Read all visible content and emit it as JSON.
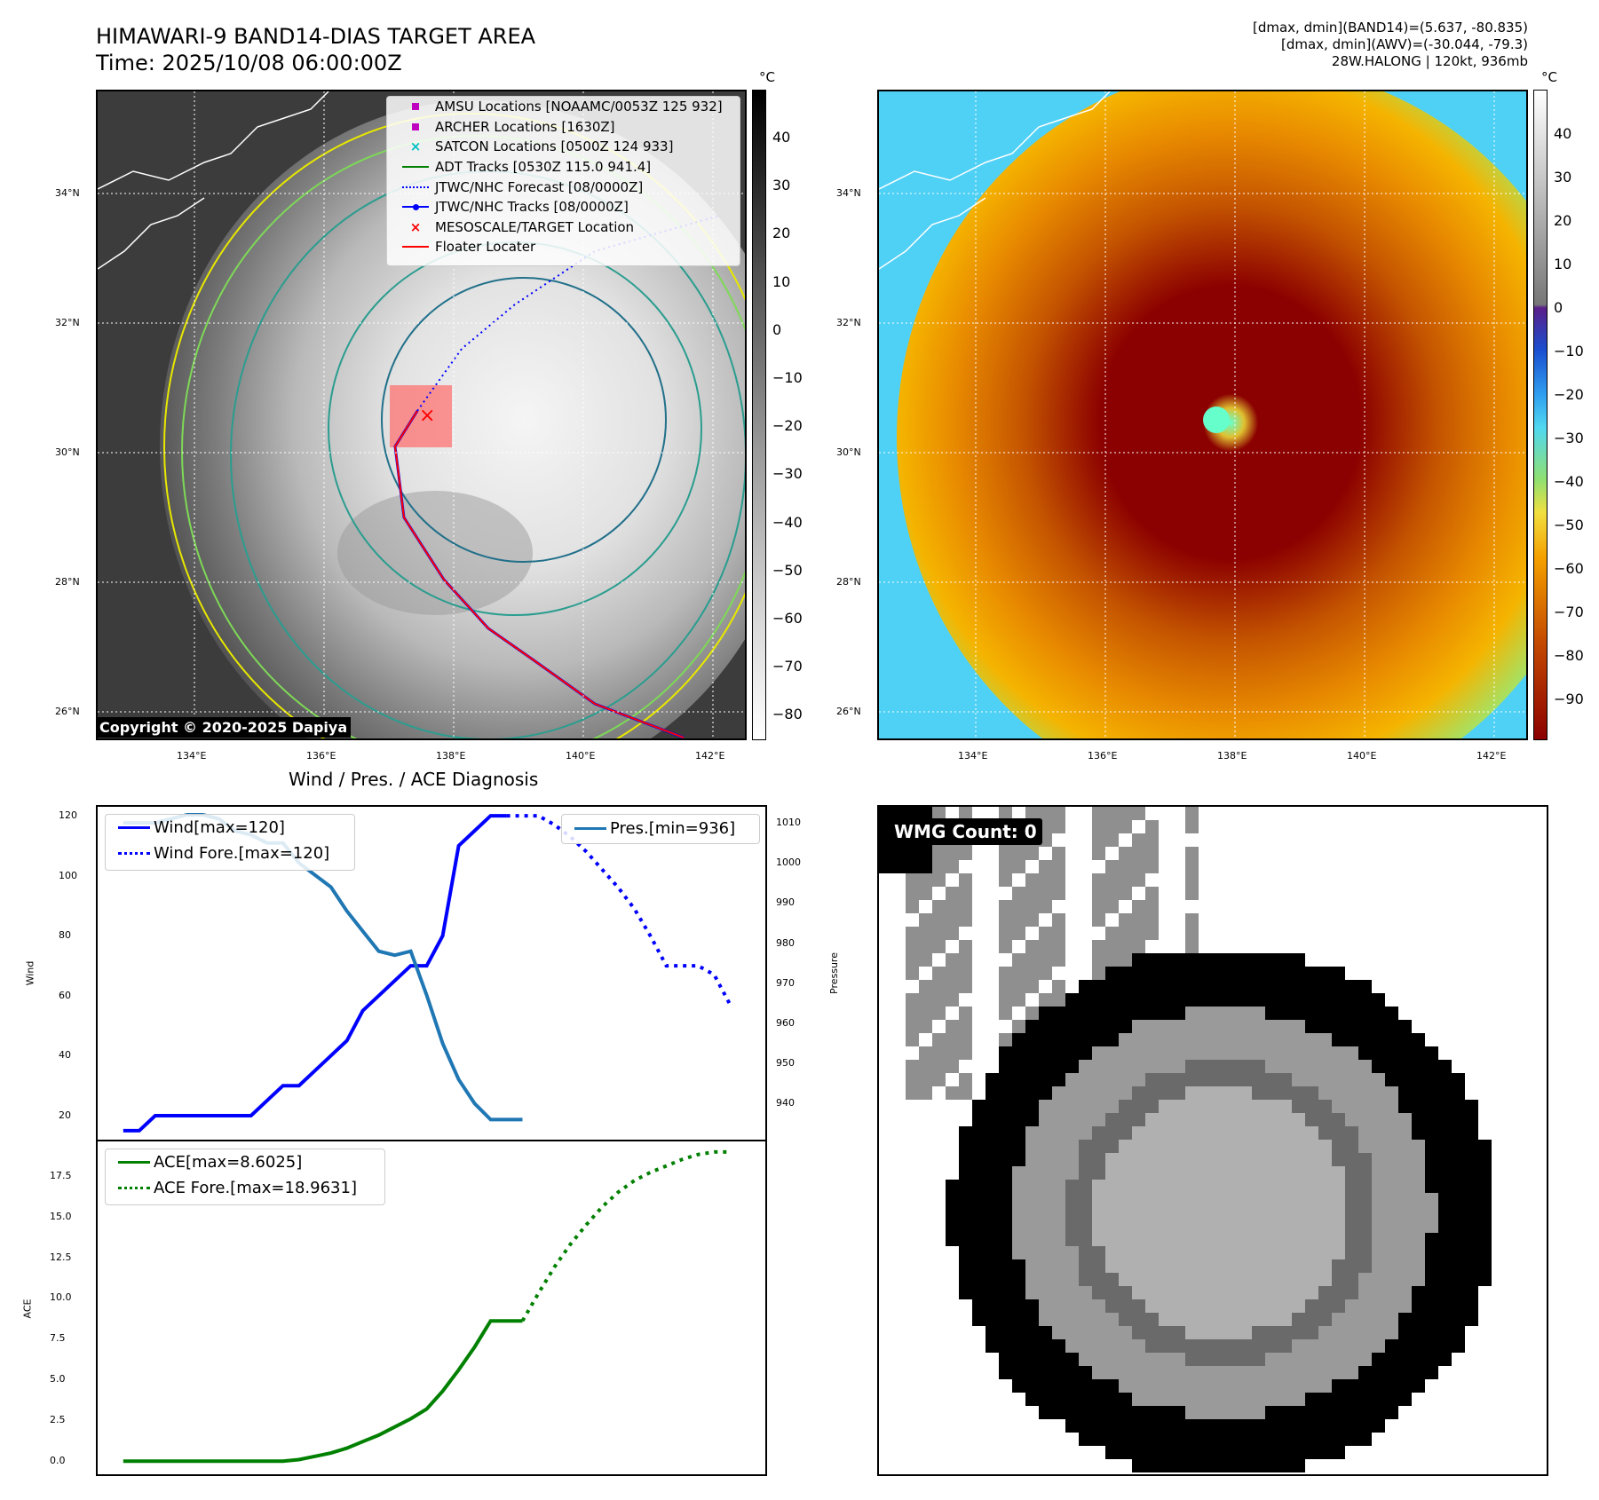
{
  "header": {
    "title_line1": "HIMAWARI-9 BAND14-DIAS TARGET AREA",
    "title_line2": "Time: 2025/10/08 06:00:00Z",
    "info_line1": "[dmax, dmin](BAND14)=(5.637, -80.835)",
    "info_line2": "[dmax, dmin](AWV)=(-30.044, -79.3)",
    "info_line3": "28W.HALONG | 120kt, 936mb"
  },
  "map_axes": {
    "lon_labels": [
      "134°E",
      "136°E",
      "138°E",
      "140°E",
      "142°E"
    ],
    "lat_labels": [
      "34°N",
      "32°N",
      "30°N",
      "28°N",
      "26°N"
    ]
  },
  "colorbar_left": {
    "unit": "°C",
    "ticks": [
      "40",
      "30",
      "20",
      "10",
      "0",
      "−10",
      "−20",
      "−30",
      "−40",
      "−50",
      "−60",
      "−70",
      "−80"
    ]
  },
  "colorbar_right": {
    "unit": "°C",
    "ticks": [
      "40",
      "30",
      "20",
      "10",
      "0",
      "−10",
      "−20",
      "−30",
      "−40",
      "−50",
      "−60",
      "−70",
      "−80",
      "−90"
    ]
  },
  "legend": {
    "items": [
      {
        "label": "AMSU Locations [NOAAMC/0053Z 125 932]",
        "icon": "square-marker",
        "color": "#c000c0"
      },
      {
        "label": "ARCHER Locations [1630Z]",
        "icon": "square-marker",
        "color": "#c000c0"
      },
      {
        "label": "SATCON Locations [0500Z 124 933]",
        "icon": "x-marker",
        "color": "#00c0c0"
      },
      {
        "label": "ADT Tracks [0530Z 115.0 941.4]",
        "icon": "solid-line",
        "color": "#008000"
      },
      {
        "label": "JTWC/NHC Forecast [08/0000Z]",
        "icon": "dotted-line",
        "color": "#0000ff"
      },
      {
        "label": "JTWC/NHC Tracks [08/0000Z]",
        "icon": "line-dot",
        "color": "#0000ff"
      },
      {
        "label": "MESOSCALE/TARGET Location",
        "icon": "x-marker",
        "color": "#ff0000"
      },
      {
        "label": "Floater Locater",
        "icon": "solid-line",
        "color": "#ff0000"
      }
    ]
  },
  "copyright": "Copyright © 2020-2025 Dapiya",
  "diagnosis_title": "Wind / Pres. / ACE Diagnosis",
  "wmg_count": "WMG Count: 0",
  "chart_data": [
    {
      "type": "line",
      "title": "Wind / Pres. / ACE Diagnosis",
      "ylabel": "Wind",
      "ylabel_right": "Pressure",
      "ylim": [
        12,
        123
      ],
      "ylim_right": [
        931,
        1014
      ],
      "yticks": [
        20,
        40,
        60,
        80,
        100,
        120
      ],
      "yticks_right": [
        940,
        950,
        960,
        970,
        980,
        990,
        1000,
        1010
      ],
      "series": [
        {
          "name": "Wind[max=120]",
          "axis": "left",
          "style": "solid",
          "color": "#0000ff",
          "x": [
            0,
            1,
            2,
            3,
            4,
            5,
            6,
            7,
            8,
            9,
            10,
            11,
            12,
            13,
            14,
            15,
            16,
            17,
            18,
            19,
            20,
            21,
            22,
            23,
            24
          ],
          "values": [
            15,
            15,
            20,
            20,
            20,
            20,
            20,
            20,
            20,
            25,
            30,
            30,
            35,
            40,
            45,
            55,
            60,
            65,
            70,
            70,
            80,
            110,
            115,
            120,
            120
          ]
        },
        {
          "name": "Wind Fore.[max=120]",
          "axis": "left",
          "style": "dotted",
          "color": "#0000ff",
          "x": [
            24,
            25,
            26,
            27,
            28,
            29,
            30,
            31,
            32,
            33,
            34,
            35,
            36,
            37,
            38
          ],
          "values": [
            120,
            120,
            120,
            117,
            113,
            108,
            102,
            96,
            89,
            80,
            70,
            70,
            70,
            67,
            57
          ]
        },
        {
          "name": "Pres.[min=936]",
          "axis": "right",
          "style": "solid",
          "color": "#1f77b4",
          "x": [
            0,
            1,
            2,
            3,
            4,
            5,
            6,
            7,
            8,
            9,
            10,
            11,
            12,
            13,
            14,
            15,
            16,
            17,
            18,
            19,
            20,
            21,
            22,
            23,
            24,
            25
          ],
          "values": [
            1010,
            1010,
            1010,
            1011,
            1012,
            1012,
            1011,
            1008,
            1007,
            1005,
            1005,
            1000,
            997,
            994,
            988,
            983,
            978,
            977,
            978,
            967,
            955,
            946,
            940,
            936,
            936,
            936
          ]
        }
      ],
      "legend": [
        "Wind[max=120]",
        "Wind Fore.[max=120]",
        "Pres.[min=936]"
      ]
    },
    {
      "type": "line",
      "ylabel": "ACE",
      "ylim": [
        -0.8,
        19.6
      ],
      "yticks": [
        0.0,
        2.5,
        5.0,
        7.5,
        10.0,
        12.5,
        15.0,
        17.5
      ],
      "series": [
        {
          "name": "ACE[max=8.6025]",
          "style": "solid",
          "color": "#008000",
          "x": [
            0,
            1,
            2,
            3,
            4,
            5,
            6,
            7,
            8,
            9,
            10,
            11,
            12,
            13,
            14,
            15,
            16,
            17,
            18,
            19,
            20,
            21,
            22,
            23,
            24,
            25
          ],
          "values": [
            0,
            0,
            0,
            0,
            0,
            0,
            0,
            0,
            0,
            0,
            0,
            0.1,
            0.3,
            0.5,
            0.8,
            1.2,
            1.6,
            2.1,
            2.6,
            3.2,
            4.3,
            5.6,
            7.0,
            8.6,
            8.6,
            8.6
          ]
        },
        {
          "name": "ACE Fore.[max=18.9631]",
          "style": "dotted",
          "color": "#008000",
          "x": [
            25,
            26,
            27,
            28,
            29,
            30,
            31,
            32,
            33,
            34,
            35,
            36,
            37,
            38
          ],
          "values": [
            8.6,
            10.3,
            11.9,
            13.3,
            14.5,
            15.6,
            16.5,
            17.2,
            17.7,
            18.1,
            18.5,
            18.8,
            18.95,
            18.96
          ]
        }
      ],
      "legend": [
        "ACE[max=8.6025]",
        "ACE Fore.[max=18.9631]"
      ]
    }
  ]
}
